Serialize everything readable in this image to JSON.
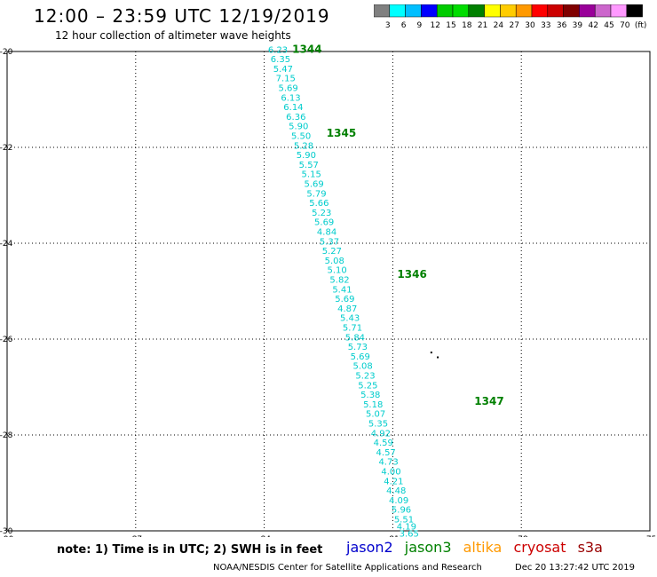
{
  "header": {
    "title": "12:00 – 23:59 UTC 12/19/2019",
    "subtitle": "12 hour collection of altimeter wave heights"
  },
  "legend": {
    "colors": [
      "#808080",
      "#00ffff",
      "#00bfff",
      "#0000ff",
      "#00cc00",
      "#00dd00",
      "#008000",
      "#ffff00",
      "#ffcc00",
      "#ff9900",
      "#ff0000",
      "#cc0000",
      "#800000",
      "#990099",
      "#cc66cc",
      "#ff99ff",
      "#000000"
    ],
    "labels": [
      "3",
      "6",
      "9",
      "12",
      "15",
      "18",
      "21",
      "24",
      "27",
      "30",
      "33",
      "36",
      "39",
      "42",
      "45",
      "70",
      "(ft)"
    ]
  },
  "chart_data": {
    "type": "scatter",
    "xlim": [
      -90,
      -75
    ],
    "ylim": [
      -30,
      -20
    ],
    "x_ticks": [
      "-90",
      "-87",
      "-84",
      "-81",
      "-78",
      "-75"
    ],
    "y_ticks": [
      "-20",
      "-22",
      "-24",
      "-26",
      "-28",
      "-30"
    ],
    "grid": true,
    "series": [
      {
        "name": "jason3",
        "color": "#00cccc",
        "points": [
          {
            "lon": -83.68,
            "lat": -19.95,
            "swh": "6.23"
          },
          {
            "lon": -83.62,
            "lat": -20.15,
            "swh": "6.35"
          },
          {
            "lon": -83.56,
            "lat": -20.35,
            "swh": "5.47"
          },
          {
            "lon": -83.5,
            "lat": -20.55,
            "swh": "7.15"
          },
          {
            "lon": -83.44,
            "lat": -20.75,
            "swh": "5.69"
          },
          {
            "lon": -83.38,
            "lat": -20.95,
            "swh": "6.13"
          },
          {
            "lon": -83.32,
            "lat": -21.15,
            "swh": "6.14"
          },
          {
            "lon": -83.26,
            "lat": -21.35,
            "swh": "6.36"
          },
          {
            "lon": -83.2,
            "lat": -21.55,
            "swh": "5.90"
          },
          {
            "lon": -83.14,
            "lat": -21.75,
            "swh": "5.50"
          },
          {
            "lon": -83.08,
            "lat": -21.95,
            "swh": "5.28"
          },
          {
            "lon": -83.02,
            "lat": -22.15,
            "swh": "5.90"
          },
          {
            "lon": -82.96,
            "lat": -22.35,
            "swh": "5.57"
          },
          {
            "lon": -82.9,
            "lat": -22.55,
            "swh": "5.15"
          },
          {
            "lon": -82.84,
            "lat": -22.75,
            "swh": "5.69"
          },
          {
            "lon": -82.78,
            "lat": -22.95,
            "swh": "5.79"
          },
          {
            "lon": -82.72,
            "lat": -23.15,
            "swh": "5.66"
          },
          {
            "lon": -82.66,
            "lat": -23.35,
            "swh": "5.23"
          },
          {
            "lon": -82.6,
            "lat": -23.55,
            "swh": "5.69"
          },
          {
            "lon": -82.54,
            "lat": -23.75,
            "swh": "4.84"
          },
          {
            "lon": -82.48,
            "lat": -23.95,
            "swh": "5.37"
          },
          {
            "lon": -82.42,
            "lat": -24.15,
            "swh": "5.27"
          },
          {
            "lon": -82.36,
            "lat": -24.35,
            "swh": "5.08"
          },
          {
            "lon": -82.3,
            "lat": -24.55,
            "swh": "5.10"
          },
          {
            "lon": -82.24,
            "lat": -24.75,
            "swh": "5.82"
          },
          {
            "lon": -82.18,
            "lat": -24.95,
            "swh": "5.41"
          },
          {
            "lon": -82.12,
            "lat": -25.15,
            "swh": "5.69"
          },
          {
            "lon": -82.06,
            "lat": -25.35,
            "swh": "4.87"
          },
          {
            "lon": -82.0,
            "lat": -25.55,
            "swh": "5.43"
          },
          {
            "lon": -81.94,
            "lat": -25.75,
            "swh": "5.71"
          },
          {
            "lon": -81.88,
            "lat": -25.95,
            "swh": "5.84"
          },
          {
            "lon": -81.82,
            "lat": -26.15,
            "swh": "5.73"
          },
          {
            "lon": -81.76,
            "lat": -26.35,
            "swh": "5.69"
          },
          {
            "lon": -81.7,
            "lat": -26.55,
            "swh": "5.08"
          },
          {
            "lon": -81.64,
            "lat": -26.75,
            "swh": "5.23"
          },
          {
            "lon": -81.58,
            "lat": -26.95,
            "swh": "5.25"
          },
          {
            "lon": -81.52,
            "lat": -27.15,
            "swh": "5.38"
          },
          {
            "lon": -81.46,
            "lat": -27.35,
            "swh": "5.18"
          },
          {
            "lon": -81.4,
            "lat": -27.55,
            "swh": "5.07"
          },
          {
            "lon": -81.34,
            "lat": -27.75,
            "swh": "5.35"
          },
          {
            "lon": -81.28,
            "lat": -27.95,
            "swh": "4.92"
          },
          {
            "lon": -81.22,
            "lat": -28.15,
            "swh": "4.59"
          },
          {
            "lon": -81.16,
            "lat": -28.35,
            "swh": "4.57"
          },
          {
            "lon": -81.1,
            "lat": -28.55,
            "swh": "4.73"
          },
          {
            "lon": -81.04,
            "lat": -28.75,
            "swh": "4.00"
          },
          {
            "lon": -80.98,
            "lat": -28.95,
            "swh": "4.21"
          },
          {
            "lon": -80.92,
            "lat": -29.15,
            "swh": "4.48"
          },
          {
            "lon": -80.86,
            "lat": -29.35,
            "swh": "4.09"
          },
          {
            "lon": -80.8,
            "lat": -29.55,
            "swh": "5.96"
          },
          {
            "lon": -80.74,
            "lat": -29.75,
            "swh": "5.51"
          },
          {
            "lon": -80.68,
            "lat": -29.9,
            "swh": "4.19"
          },
          {
            "lon": -80.62,
            "lat": -30.05,
            "swh": "3.65"
          }
        ],
        "pass_labels": [
          {
            "text": "1344",
            "lon": -83.0,
            "lat": -19.95
          },
          {
            "text": "1345",
            "lon": -82.2,
            "lat": -21.7
          },
          {
            "text": "1346",
            "lon": -80.55,
            "lat": -24.65
          },
          {
            "text": "1347",
            "lon": -78.75,
            "lat": -27.3
          }
        ]
      }
    ],
    "markers": [
      {
        "lon": -80.1,
        "lat": -26.28
      },
      {
        "lon": -79.95,
        "lat": -26.38
      }
    ]
  },
  "note": "note: 1) Time is in UTC; 2) SWH is in feet",
  "satellites": [
    {
      "name": "jason2",
      "color": "#0000cc"
    },
    {
      "name": "jason3",
      "color": "#008000"
    },
    {
      "name": "altika",
      "color": "#ff9900"
    },
    {
      "name": "cryosat",
      "color": "#cc0000"
    },
    {
      "name": "s3a",
      "color": "#990000"
    }
  ],
  "footer": "NOAA/NESDIS Center for Satellite Applications and Research",
  "timestamp": "Dec 20 13:27:42 UTC 2019"
}
